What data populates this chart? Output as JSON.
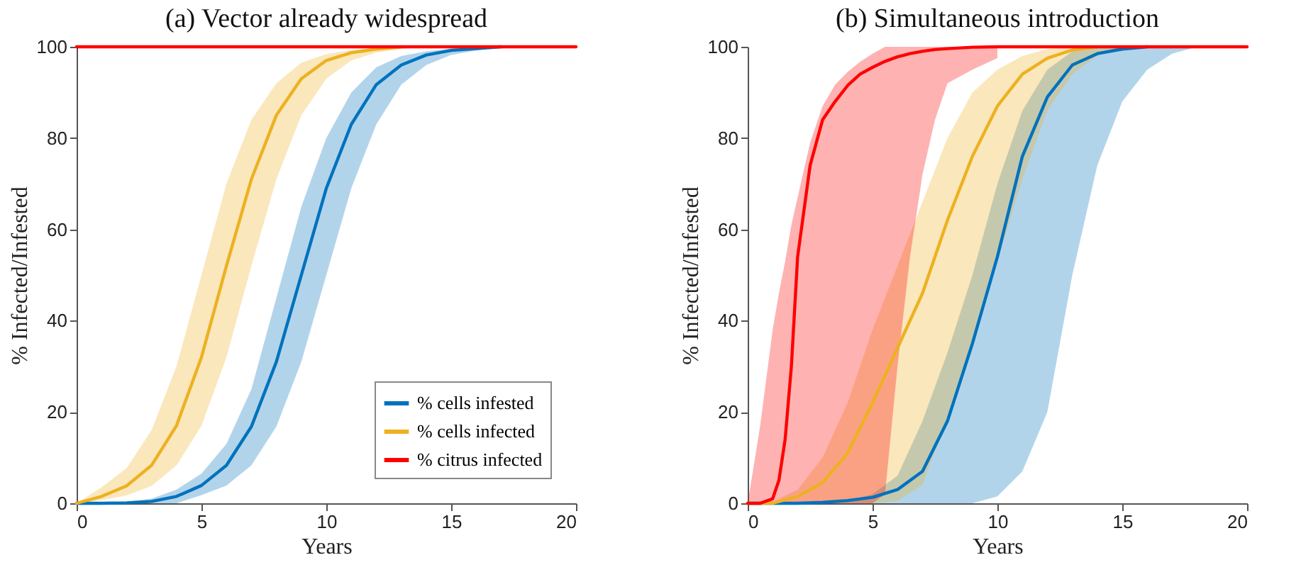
{
  "chart_data": [
    {
      "type": "line",
      "title": "(a) Vector already widespread",
      "xlabel": "Years",
      "ylabel": "% Infected/Infested",
      "xlim": [
        0,
        20
      ],
      "xticks": [
        0,
        5,
        10,
        15,
        20
      ],
      "ylim": [
        0,
        100
      ],
      "yticks": [
        0,
        20,
        40,
        60,
        80,
        100
      ],
      "grid": false,
      "legend": "bottom right",
      "marker": "none",
      "line_style": "solid",
      "x": [
        0,
        1,
        2,
        3,
        4,
        5,
        6,
        7,
        8,
        9,
        10,
        11,
        12,
        13,
        14,
        15,
        16,
        17,
        18,
        19,
        20
      ],
      "series": [
        {
          "name": "% cells infested",
          "color": "#0072bd",
          "values": [
            0,
            0,
            0.1,
            0.4,
            1.5,
            3.9,
            8.3,
            16.8,
            31,
            50,
            69,
            83,
            91.7,
            96,
            98.2,
            99.2,
            99.6,
            100,
            null,
            null,
            null
          ],
          "upper": [
            0,
            0.1,
            0.3,
            1,
            3,
            6.5,
            13,
            25,
            45,
            65,
            80,
            90,
            95.5,
            98,
            99,
            99.6,
            100,
            100,
            100,
            null,
            null
          ],
          "lower": [
            0,
            0,
            0,
            0,
            0,
            1.8,
            3.9,
            8.3,
            16.8,
            31,
            50,
            69,
            83,
            91.7,
            96,
            98.2,
            99.2,
            99.8,
            100,
            null,
            null
          ]
        },
        {
          "name": "% cells infected",
          "color": "#edb120",
          "values": [
            0,
            1.5,
            3.8,
            8.3,
            17,
            32,
            52,
            71,
            85,
            93,
            97,
            98.7,
            99.5,
            100,
            null,
            null,
            null,
            null,
            null,
            null,
            null
          ],
          "upper": [
            0,
            3.5,
            7.7,
            16,
            30,
            50,
            70,
            84,
            92,
            96.5,
            98.4,
            99.3,
            99.7,
            100,
            100,
            null,
            null,
            null,
            null,
            null,
            null
          ],
          "lower": [
            0,
            0.7,
            1.7,
            3.8,
            8.3,
            17,
            32,
            52,
            71,
            85,
            93,
            97,
            98.7,
            99.5,
            100,
            null,
            null,
            null,
            null,
            null,
            null
          ]
        },
        {
          "name": "% citrus infected",
          "color": "#ff0000",
          "values": [
            100,
            100,
            100,
            100,
            100,
            100,
            100,
            100,
            100,
            100,
            100,
            100,
            100,
            100,
            100,
            100,
            100,
            100,
            100,
            100,
            100
          ]
        }
      ]
    },
    {
      "type": "line",
      "title": "(b) Simultaneous introduction",
      "xlabel": "Years",
      "ylabel": "% Infected/Infested",
      "xlim": [
        0,
        20
      ],
      "xticks": [
        0,
        5,
        10,
        15,
        20
      ],
      "ylim": [
        0,
        100
      ],
      "yticks": [
        0,
        20,
        40,
        60,
        80,
        100
      ],
      "grid": false,
      "marker": "none",
      "line_style": "solid",
      "x": [
        0,
        1,
        2,
        3,
        4,
        5,
        6,
        7,
        8,
        9,
        10,
        11,
        12,
        13,
        14,
        15,
        16,
        17,
        18
      ],
      "series": [
        {
          "color": "#0072bd",
          "values": [
            0,
            0,
            0,
            0.2,
            0.6,
            1.3,
            3,
            7,
            18,
            35,
            54,
            76,
            89,
            96,
            98.5,
            99.5,
            100,
            null,
            null
          ],
          "upper": [
            0,
            0,
            0,
            0,
            0.5,
            2,
            6,
            18,
            33,
            50,
            70,
            86,
            95,
            99,
            100,
            100,
            100,
            100,
            100
          ],
          "lower": [
            0,
            0,
            0,
            0,
            0,
            0,
            0,
            0,
            0,
            0,
            1.5,
            7,
            20,
            50,
            74,
            88,
            95,
            98.5,
            100
          ]
        },
        {
          "color": "#edb120",
          "values": [
            0,
            0,
            1.5,
            4.5,
            11,
            22,
            34,
            46,
            62,
            76,
            87,
            94,
            97.5,
            99.3,
            100,
            null,
            null,
            null,
            null
          ],
          "upper": [
            0,
            0.3,
            3,
            10,
            22,
            38,
            52,
            66,
            80,
            90,
            95,
            98,
            99.5,
            100,
            100,
            100,
            100,
            null,
            null
          ],
          "lower": [
            0,
            0,
            0,
            0,
            0,
            0,
            0.5,
            4,
            19,
            34,
            53,
            71,
            86,
            94,
            98,
            99.5,
            100,
            null,
            null
          ]
        },
        {
          "color": "#ff0000",
          "x": [
            0,
            0.5,
            1,
            1.25,
            1.5,
            1.75,
            2,
            2.5,
            3,
            3.5,
            4,
            4.5,
            5,
            5.5,
            6,
            6.5,
            7,
            7.5,
            8,
            9,
            10,
            12,
            14,
            16,
            18,
            20
          ],
          "values": [
            0,
            0,
            1,
            5,
            14,
            30,
            54,
            74,
            84,
            88,
            91.5,
            94,
            95.5,
            96.8,
            97.8,
            98.5,
            99,
            99.4,
            99.6,
            99.9,
            100,
            100,
            100,
            100,
            100,
            100
          ],
          "upper": [
            0,
            17,
            38,
            46,
            53,
            61,
            67,
            79,
            87,
            91.7,
            94.5,
            96.7,
            98.5,
            100,
            100,
            100,
            100,
            100,
            100,
            100,
            100,
            null,
            null,
            null,
            null,
            null
          ],
          "lower": [
            0,
            0,
            0,
            0,
            0,
            0,
            0,
            0,
            0,
            0,
            0,
            0,
            0,
            2,
            30,
            54,
            72,
            84,
            92,
            95,
            97.5,
            null,
            null,
            null,
            null,
            null
          ]
        }
      ]
    }
  ]
}
